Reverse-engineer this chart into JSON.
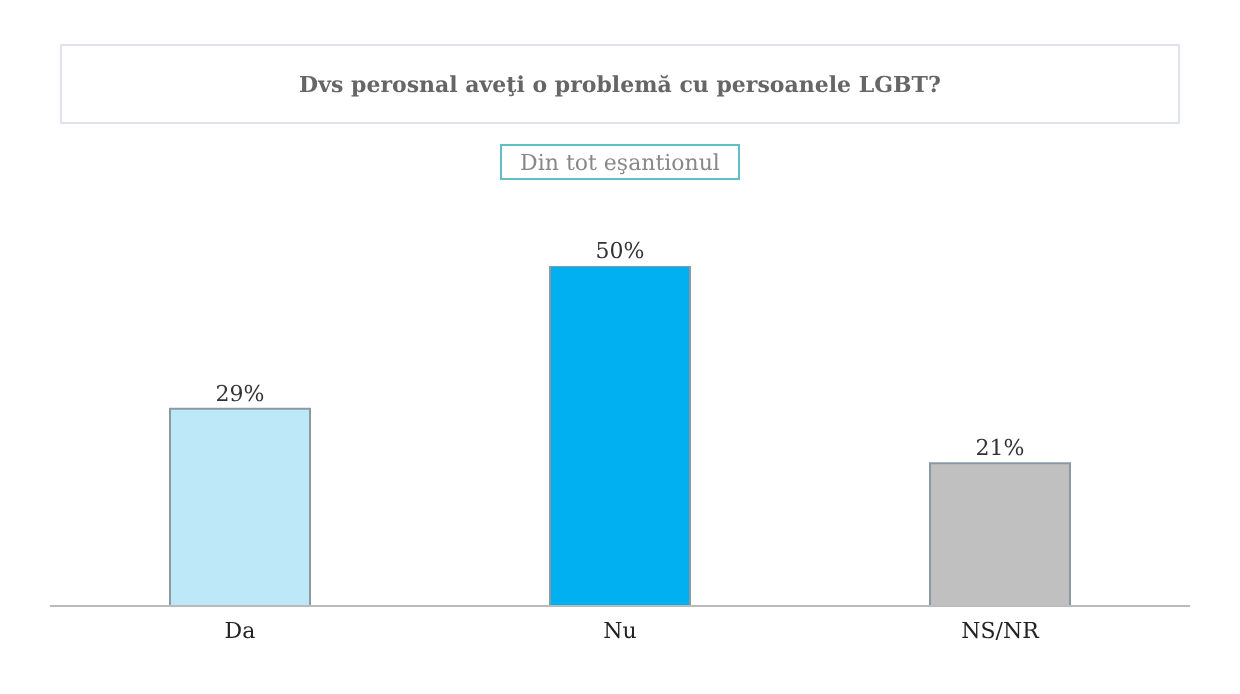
{
  "chart_data": {
    "type": "bar",
    "title": "Dvs perosnal aveţi o problemă cu persoanele LGBT?",
    "subtitle": "Din tot eşantionul",
    "categories": [
      "Da",
      "Nu",
      "NS/NR"
    ],
    "values": [
      29,
      50,
      21
    ],
    "colors": [
      "#bde8f8",
      "#00b0f0",
      "#c0c0c0"
    ],
    "value_labels": [
      "29%",
      "50%",
      "21%"
    ],
    "tick_labels": "x"
  }
}
